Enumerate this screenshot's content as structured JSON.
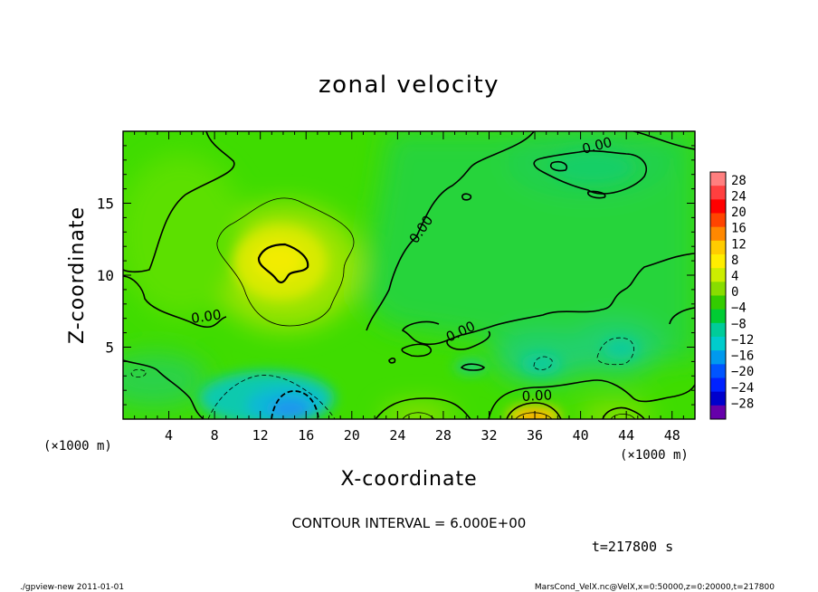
{
  "chart_data": {
    "type": "heatmap",
    "title": "zonal velocity",
    "xlabel": "X-coordinate",
    "ylabel": "Z-coordinate",
    "x_unit": "(×1000 m)",
    "z_unit": "(×1000 m)",
    "xlim": [
      0,
      50
    ],
    "ylim": [
      0,
      20
    ],
    "x_ticks": [
      4,
      8,
      12,
      16,
      20,
      24,
      28,
      32,
      36,
      40,
      44,
      48
    ],
    "y_ticks": [
      5,
      10,
      15
    ],
    "colorbar": {
      "labels": [
        "28",
        "24",
        "20",
        "16",
        "12",
        "8",
        "4",
        "0",
        "−4",
        "−8",
        "−12",
        "−16",
        "−20",
        "−24",
        "−28"
      ],
      "colors": [
        "#ff7f7f",
        "#ff3f3f",
        "#ff0000",
        "#ff4400",
        "#ff8800",
        "#ffcc00",
        "#ffee00",
        "#ccee00",
        "#88dd00",
        "#33cc00",
        "#00cc33",
        "#00cc99",
        "#00cccc",
        "#0099ee",
        "#0055ff",
        "#0022ff",
        "#0000cc",
        "#6600aa"
      ]
    },
    "contour_labels": [
      "0.00",
      "0.00",
      "0.00",
      "0.00",
      "0.00",
      "0.00"
    ],
    "features": [
      {
        "x": 14.5,
        "z": 11.0,
        "value": 12
      },
      {
        "x": 15.0,
        "z": 1.0,
        "value": -12
      },
      {
        "x": 36.0,
        "z": 0.3,
        "value": 10
      },
      {
        "x": 43.0,
        "z": 0.5,
        "value": 6
      },
      {
        "x": 26.0,
        "z": 0.3,
        "value": 6
      },
      {
        "x": 36.0,
        "z": 4.0,
        "value": -5
      },
      {
        "x": 43.0,
        "z": 5.0,
        "value": -5
      },
      {
        "x": 10.0,
        "z": 2.0,
        "value": -4
      },
      {
        "x": 45.0,
        "z": 17.0,
        "value": -2
      }
    ],
    "contour_interval": "CONTOUR INTERVAL = 6.000E+00",
    "time_label": "t=217800 s"
  },
  "footer": {
    "left": "./gpview-new   2011-01-01",
    "right": "MarsCond_VelX.nc@VelX,x=0:50000,z=0:20000,t=217800"
  }
}
